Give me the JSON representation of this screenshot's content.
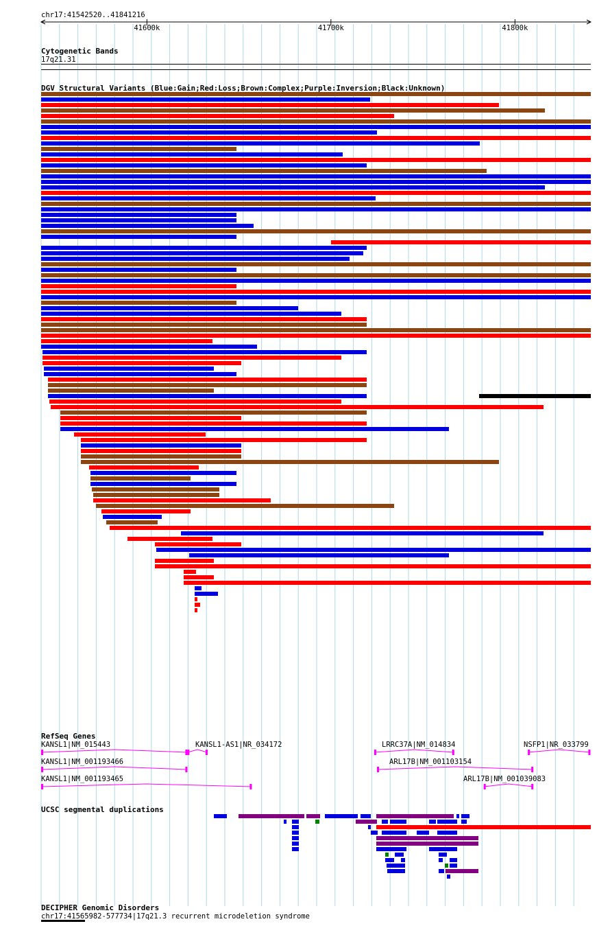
{
  "region": "chr17:41542520..41841216",
  "ruler": {
    "start": 41542520,
    "end": 41841216,
    "ticks": [
      {
        "pos": 41600000,
        "label": "41600k"
      },
      {
        "pos": 41700000,
        "label": "41700k"
      },
      {
        "pos": 41800000,
        "label": "41800k"
      }
    ]
  },
  "tracks": {
    "cytoband": {
      "title": "Cytogenetic Bands",
      "band": "17q21.31"
    },
    "dgv": {
      "title": "DGV Structural Variants (Blue:Gain;Red:Loss;Brown:Complex;Purple:Inversion;Black:Unknown)"
    },
    "refseq": {
      "title": "RefSeq Genes",
      "genes": [
        {
          "label": "KANSL1|NM_015443",
          "start": 41542520,
          "end": 41622000,
          "strand": "-"
        },
        {
          "label": "KANSL1|NM_001193466",
          "start": 41542520,
          "end": 41622000,
          "strand": "-"
        },
        {
          "label": "KANSL1|NM_001193465",
          "start": 41542520,
          "end": 41657000,
          "strand": "-"
        },
        {
          "label": "KANSL1-AS1|NR_034172",
          "start": 41622000,
          "end": 41633000,
          "strand": "+"
        },
        {
          "label": "LRRC37A|NM_014834",
          "start": 41723500,
          "end": 41767000,
          "strand": "+"
        },
        {
          "label": "ARL17B|NM_001103154",
          "start": 41725000,
          "end": 41810000,
          "strand": "-"
        },
        {
          "label": "ARL17B|NM_001039083",
          "start": 41783000,
          "end": 41810000,
          "strand": "-"
        },
        {
          "label": "NSFP1|NR_033799",
          "start": 41807000,
          "end": 41841000,
          "strand": "+"
        }
      ]
    },
    "segdup": {
      "title": "UCSC segmental duplications"
    },
    "decipher": {
      "title": "DECIPHER Genomic Disorders",
      "item": "chr17:41565982-577734|17q21.3 recurrent microdeletion syndrome"
    }
  },
  "colors": {
    "gain": "#0000dd",
    "loss": "#ff0000",
    "complex": "#8b4513",
    "inversion": "#800080",
    "unknown": "#000000",
    "gene": "#ff00ff",
    "segdup_green": "#008000",
    "grid": "#add8e6"
  }
}
